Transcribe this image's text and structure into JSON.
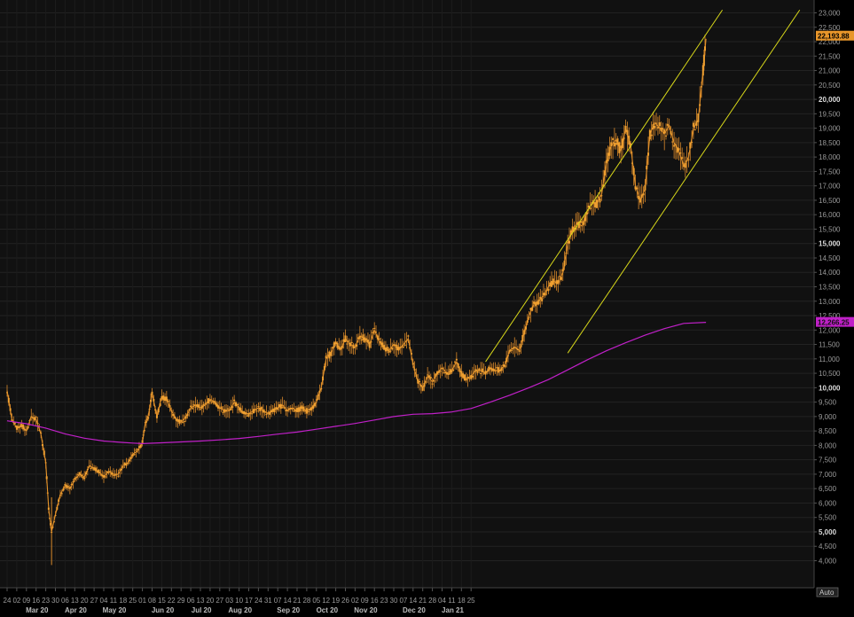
{
  "chart_data": {
    "type": "candlestick",
    "price_axis_ticks": [
      4000,
      4500,
      5000,
      5500,
      6000,
      6500,
      7000,
      7500,
      8000,
      8500,
      9000,
      9500,
      10000,
      10500,
      11000,
      11500,
      12000,
      12500,
      13000,
      13500,
      14000,
      14500,
      15000,
      15500,
      16000,
      16500,
      17000,
      17500,
      18000,
      18500,
      19000,
      19500,
      20000,
      20500,
      21000,
      21500,
      22000,
      22500,
      23000
    ],
    "ylim": [
      3700,
      23100
    ],
    "last_price_label": "22,193.88",
    "ma_label": "12,266.25",
    "auto_label": "Auto",
    "day_ticks": [
      "24",
      "02",
      "09",
      "16",
      "23",
      "30",
      "06",
      "13",
      "20",
      "27",
      "04",
      "11",
      "18",
      "25",
      "01",
      "08",
      "15",
      "22",
      "29",
      "06",
      "13",
      "20",
      "27",
      "03",
      "10",
      "17",
      "24",
      "31",
      "07",
      "14",
      "21",
      "28",
      "05",
      "12",
      "19",
      "26",
      "02",
      "09",
      "16",
      "23",
      "30",
      "07",
      "14",
      "21",
      "28",
      "04",
      "11",
      "18",
      "25"
    ],
    "month_labels": [
      {
        "label": "Mar 20",
        "week_index": 2
      },
      {
        "label": "Apr 20",
        "week_index": 6
      },
      {
        "label": "May 20",
        "week_index": 10
      },
      {
        "label": "Jun 20",
        "week_index": 15
      },
      {
        "label": "Jul 20",
        "week_index": 19
      },
      {
        "label": "Aug 20",
        "week_index": 23
      },
      {
        "label": "Sep 20",
        "week_index": 28
      },
      {
        "label": "Oct 20",
        "week_index": 32
      },
      {
        "label": "Nov 20",
        "week_index": 36
      },
      {
        "label": "Dec 20",
        "week_index": 41
      },
      {
        "label": "Jan 21",
        "week_index": 45
      }
    ],
    "price_path": [
      [
        0,
        9900
      ],
      [
        0.5,
        8900
      ],
      [
        1,
        8600
      ],
      [
        1.5,
        8700
      ],
      [
        2,
        8500
      ],
      [
        2.5,
        9000
      ],
      [
        3,
        8900
      ],
      [
        3.5,
        8400
      ],
      [
        4,
        7400
      ],
      [
        4.3,
        5800
      ],
      [
        4.6,
        5000
      ],
      [
        5,
        5600
      ],
      [
        5.5,
        6300
      ],
      [
        6,
        6600
      ],
      [
        6.5,
        6500
      ],
      [
        7,
        6800
      ],
      [
        7.5,
        7000
      ],
      [
        8,
        6900
      ],
      [
        8.5,
        7300
      ],
      [
        9,
        7200
      ],
      [
        9.5,
        7100
      ],
      [
        10,
        6900
      ],
      [
        10.5,
        7100
      ],
      [
        11,
        7000
      ],
      [
        11.5,
        7000
      ],
      [
        12,
        7300
      ],
      [
        12.5,
        7400
      ],
      [
        13,
        7700
      ],
      [
        13.5,
        7800
      ],
      [
        14,
        8100
      ],
      [
        14.3,
        8800
      ],
      [
        14.6,
        9000
      ],
      [
        15,
        9800
      ],
      [
        15.5,
        9000
      ],
      [
        16,
        9700
      ],
      [
        16.5,
        9600
      ],
      [
        17,
        9200
      ],
      [
        17.5,
        8900
      ],
      [
        18,
        8800
      ],
      [
        18.5,
        9000
      ],
      [
        19,
        9300
      ],
      [
        19.5,
        9400
      ],
      [
        20,
        9300
      ],
      [
        20.5,
        9400
      ],
      [
        21,
        9600
      ],
      [
        21.5,
        9500
      ],
      [
        22,
        9300
      ],
      [
        22.5,
        9200
      ],
      [
        23,
        9200
      ],
      [
        23.5,
        9500
      ],
      [
        24,
        9300
      ],
      [
        24.5,
        9100
      ],
      [
        25,
        9100
      ],
      [
        25.5,
        9200
      ],
      [
        26,
        9300
      ],
      [
        26.5,
        9200
      ],
      [
        27,
        9100
      ],
      [
        27.5,
        9200
      ],
      [
        28,
        9300
      ],
      [
        28.5,
        9400
      ],
      [
        29,
        9200
      ],
      [
        29.5,
        9300
      ],
      [
        30,
        9200
      ],
      [
        30.5,
        9300
      ],
      [
        31,
        9200
      ],
      [
        31.5,
        9300
      ],
      [
        32,
        9500
      ],
      [
        32.5,
        10000
      ],
      [
        33,
        11000
      ],
      [
        33.5,
        11200
      ],
      [
        34,
        11600
      ],
      [
        34.5,
        11300
      ],
      [
        35,
        11700
      ],
      [
        35.5,
        11500
      ],
      [
        36,
        11400
      ],
      [
        36.5,
        11800
      ],
      [
        37,
        11700
      ],
      [
        37.5,
        11500
      ],
      [
        38,
        12000
      ],
      [
        38.5,
        11600
      ],
      [
        39,
        11400
      ],
      [
        39.5,
        11300
      ],
      [
        40,
        11500
      ],
      [
        40.5,
        11300
      ],
      [
        41,
        11500
      ],
      [
        41.5,
        11700
      ],
      [
        42,
        10800
      ],
      [
        42.5,
        10200
      ],
      [
        43,
        10000
      ],
      [
        43.5,
        10400
      ],
      [
        44,
        10200
      ],
      [
        44.5,
        10500
      ],
      [
        45,
        10700
      ],
      [
        45.5,
        10500
      ],
      [
        46,
        10600
      ],
      [
        46.5,
        10900
      ],
      [
        47,
        10500
      ],
      [
        47.5,
        10300
      ],
      [
        48,
        10400
      ],
      [
        48.5,
        10600
      ],
      [
        49,
        10600
      ],
      [
        49.5,
        10500
      ],
      [
        50,
        10700
      ],
      [
        50.5,
        10600
      ],
      [
        51,
        10600
      ],
      [
        51.5,
        10800
      ],
      [
        52,
        11300
      ],
      [
        52.5,
        11400
      ],
      [
        53,
        11300
      ],
      [
        53.5,
        11900
      ],
      [
        54,
        12500
      ],
      [
        54.5,
        12900
      ],
      [
        55,
        13000
      ],
      [
        55.5,
        13200
      ],
      [
        56,
        13500
      ],
      [
        56.5,
        13700
      ],
      [
        57,
        13600
      ],
      [
        57.5,
        14000
      ],
      [
        58,
        15000
      ],
      [
        58.5,
        15500
      ],
      [
        59,
        15700
      ],
      [
        59.5,
        15600
      ],
      [
        60,
        16100
      ],
      [
        60.5,
        16400
      ],
      [
        61,
        16400
      ],
      [
        61.5,
        16700
      ],
      [
        62,
        17800
      ],
      [
        62.5,
        18400
      ],
      [
        63,
        18600
      ],
      [
        63.5,
        18200
      ],
      [
        64,
        19000
      ],
      [
        64.5,
        18400
      ],
      [
        65,
        17000
      ],
      [
        65.5,
        16500
      ],
      [
        66,
        16900
      ],
      [
        66.5,
        18800
      ],
      [
        67,
        19200
      ],
      [
        67.5,
        19000
      ],
      [
        68,
        18800
      ],
      [
        68.5,
        19100
      ],
      [
        69,
        18500
      ],
      [
        69.5,
        18200
      ],
      [
        70,
        17700
      ],
      [
        70.5,
        18000
      ],
      [
        71,
        19000
      ],
      [
        71.5,
        19300
      ],
      [
        72,
        21000
      ],
      [
        72.3,
        22100
      ]
    ],
    "moving_average": [
      [
        0,
        8850
      ],
      [
        2,
        8750
      ],
      [
        4,
        8600
      ],
      [
        6,
        8400
      ],
      [
        8,
        8250
      ],
      [
        10,
        8150
      ],
      [
        12,
        8100
      ],
      [
        13,
        8080
      ],
      [
        14,
        8060
      ],
      [
        16,
        8090
      ],
      [
        18,
        8120
      ],
      [
        20,
        8150
      ],
      [
        22,
        8190
      ],
      [
        24,
        8240
      ],
      [
        26,
        8310
      ],
      [
        28,
        8390
      ],
      [
        30,
        8460
      ],
      [
        32,
        8560
      ],
      [
        34,
        8660
      ],
      [
        36,
        8760
      ],
      [
        38,
        8880
      ],
      [
        40,
        9000
      ],
      [
        42,
        9080
      ],
      [
        44,
        9100
      ],
      [
        46,
        9160
      ],
      [
        48,
        9280
      ],
      [
        50,
        9500
      ],
      [
        52,
        9740
      ],
      [
        54,
        10000
      ],
      [
        56,
        10280
      ],
      [
        58,
        10620
      ],
      [
        60,
        10960
      ],
      [
        62,
        11280
      ],
      [
        64,
        11560
      ],
      [
        66,
        11820
      ],
      [
        68,
        12050
      ],
      [
        70,
        12230
      ],
      [
        72.3,
        12266.25
      ]
    ],
    "channel_lines": [
      [
        [
          49.5,
          10900
        ],
        [
          74,
          23100
        ]
      ],
      [
        [
          58,
          11200
        ],
        [
          82,
          23100
        ]
      ]
    ]
  }
}
